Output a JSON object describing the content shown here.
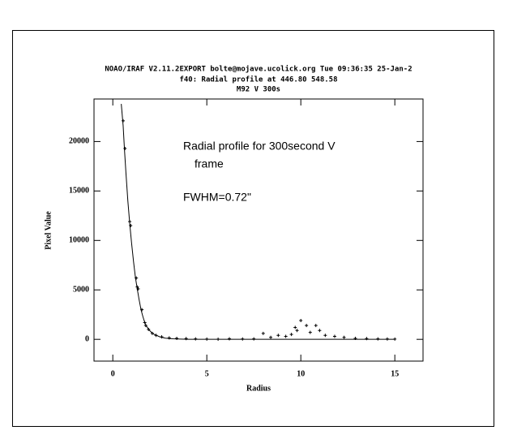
{
  "chart_data": {
    "type": "scatter",
    "title": [
      "NOAO/IRAF V2.11.2EXPORT bolte@mojave.ucolick.org Tue 09:36:35 25-Jan-2",
      "f40: Radial profile at 446.80 548.58",
      "M92 V 300s"
    ],
    "xlabel": "Radius",
    "ylabel": "Pixel Value",
    "annotations": [
      "Radial profile for 300second V",
      "frame",
      "FWHM=0.72\""
    ],
    "xlim": [
      -1,
      16.5
    ],
    "ylim": [
      -2200,
      24300
    ],
    "xticks": [
      0,
      5,
      10,
      15
    ],
    "yticks": [
      0,
      5000,
      10000,
      15000,
      20000
    ],
    "series": [
      {
        "style": "line",
        "color": "#000000",
        "x": [
          0.45,
          0.55,
          0.62,
          0.7,
          0.8,
          0.9,
          1.0,
          1.1,
          1.2,
          1.3,
          1.4,
          1.5,
          1.6,
          1.7,
          1.8,
          2.0,
          2.2,
          2.5,
          2.8,
          3.2,
          3.6,
          4,
          5,
          6,
          7,
          8,
          9,
          10,
          11,
          12,
          13,
          14,
          15
        ],
        "values": [
          23800,
          21600,
          19200,
          16800,
          14000,
          11700,
          9700,
          7900,
          6300,
          5100,
          4000,
          3000,
          2300,
          1700,
          1300,
          800,
          500,
          250,
          120,
          60,
          30,
          10,
          0,
          0,
          0,
          0,
          0,
          0,
          0,
          0,
          0,
          0,
          0
        ]
      },
      {
        "style": "points",
        "color": "#000000",
        "x": [
          0.55,
          0.65,
          0.9,
          0.95,
          1.25,
          1.3,
          1.35,
          1.55,
          1.7,
          1.75,
          1.9,
          2.1,
          2.3,
          2.6,
          3.0,
          3.4,
          3.9,
          4.4,
          5.0,
          5.6,
          6.2,
          6.9,
          7.5,
          8.0,
          8.4,
          8.8,
          9.2,
          9.5,
          9.7,
          9.8,
          10.0,
          10.3,
          10.5,
          10.8,
          11.0,
          11.3,
          11.8,
          12.3,
          12.9,
          13.5,
          14.1,
          14.6,
          15.0
        ],
        "values": [
          22100,
          19300,
          11900,
          11500,
          6200,
          5300,
          5100,
          3000,
          1700,
          1400,
          1000,
          600,
          400,
          250,
          150,
          100,
          80,
          50,
          30,
          20,
          60,
          40,
          50,
          600,
          200,
          400,
          300,
          500,
          1200,
          900,
          1900,
          1400,
          700,
          1400,
          900,
          400,
          300,
          200,
          100,
          80,
          50,
          40,
          30
        ]
      }
    ]
  }
}
